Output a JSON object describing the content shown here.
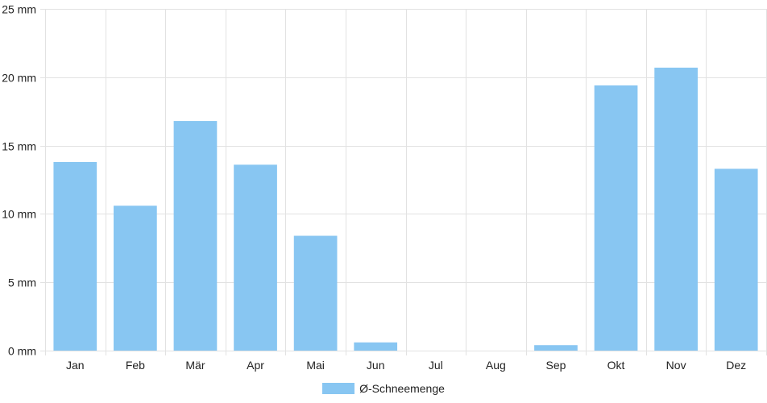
{
  "chart_data": {
    "type": "bar",
    "categories": [
      "Jan",
      "Feb",
      "Mär",
      "Apr",
      "Mai",
      "Jun",
      "Jul",
      "Aug",
      "Sep",
      "Okt",
      "Nov",
      "Dez"
    ],
    "series": [
      {
        "name": "Ø-Schneemenge",
        "values": [
          13.8,
          10.6,
          16.8,
          13.6,
          8.4,
          0.6,
          0,
          0,
          0.4,
          19.4,
          20.7,
          13.3
        ]
      }
    ],
    "ylim": [
      0,
      25
    ],
    "yticks": [
      0,
      5,
      10,
      15,
      20,
      25
    ],
    "ytick_labels": [
      "0 mm",
      "5 mm",
      "10 mm",
      "15 mm",
      "20 mm",
      "25 mm"
    ],
    "grid": true,
    "legend_position": "bottom",
    "colors": {
      "bar": "#88c6f2",
      "grid": "#e2e2e2"
    }
  }
}
